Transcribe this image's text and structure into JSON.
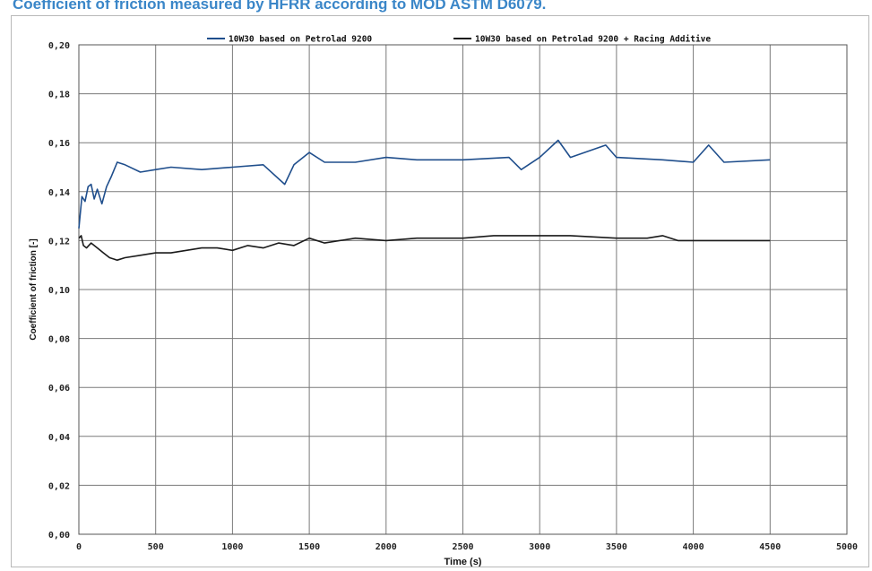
{
  "page_title": "Coefficient of friction measured by HFRR according to MOD ASTM D6079.",
  "chart_data": {
    "type": "line",
    "title": "",
    "xlabel": "Time (s)",
    "ylabel": "Coefficient of friction [-]",
    "xlim": [
      0,
      5000
    ],
    "ylim": [
      0,
      0.2
    ],
    "x_ticks": [
      0,
      500,
      1000,
      1500,
      2000,
      2500,
      3000,
      3500,
      4000,
      4500,
      5000
    ],
    "x_tick_labels": [
      "0",
      "500",
      "1000",
      "1500",
      "2000",
      "2500",
      "3000",
      "3500",
      "4000",
      "4500",
      "5000"
    ],
    "y_ticks": [
      0,
      0.02,
      0.04,
      0.06,
      0.08,
      0.1,
      0.12,
      0.14,
      0.16,
      0.18,
      0.2
    ],
    "y_tick_labels": [
      "0,00",
      "0,02",
      "0,04",
      "0,06",
      "0,08",
      "0,10",
      "0,12",
      "0,14",
      "0,16",
      "0,18",
      "0,20"
    ],
    "grid": true,
    "legend_position": "top-center",
    "series": [
      {
        "name": "10W30 based on Petrolad 9200",
        "color": "#1f4e8c",
        "x": [
          0,
          20,
          40,
          60,
          80,
          100,
          120,
          150,
          180,
          210,
          250,
          300,
          400,
          500,
          600,
          800,
          1000,
          1200,
          1340,
          1400,
          1500,
          1600,
          1800,
          2000,
          2200,
          2500,
          2800,
          2880,
          3000,
          3120,
          3200,
          3430,
          3500,
          3800,
          4000,
          4100,
          4200,
          4500
        ],
        "y": [
          0.125,
          0.138,
          0.136,
          0.142,
          0.143,
          0.137,
          0.141,
          0.135,
          0.142,
          0.146,
          0.152,
          0.151,
          0.148,
          0.149,
          0.15,
          0.149,
          0.15,
          0.151,
          0.143,
          0.151,
          0.156,
          0.152,
          0.152,
          0.154,
          0.153,
          0.153,
          0.154,
          0.149,
          0.154,
          0.161,
          0.154,
          0.159,
          0.154,
          0.153,
          0.152,
          0.159,
          0.152,
          0.153
        ]
      },
      {
        "name": "10W30 based on Petrolad 9200 + Racing Additive",
        "color": "#1a1a1a",
        "x": [
          0,
          15,
          30,
          50,
          80,
          120,
          160,
          200,
          250,
          300,
          400,
          500,
          600,
          700,
          800,
          900,
          1000,
          1100,
          1200,
          1300,
          1400,
          1500,
          1600,
          1800,
          2000,
          2200,
          2500,
          2700,
          3000,
          3200,
          3500,
          3700,
          3800,
          3900,
          4000,
          4200,
          4500
        ],
        "y": [
          0.121,
          0.122,
          0.118,
          0.117,
          0.119,
          0.117,
          0.115,
          0.113,
          0.112,
          0.113,
          0.114,
          0.115,
          0.115,
          0.116,
          0.117,
          0.117,
          0.116,
          0.118,
          0.117,
          0.119,
          0.118,
          0.121,
          0.119,
          0.121,
          0.12,
          0.121,
          0.121,
          0.122,
          0.122,
          0.122,
          0.121,
          0.121,
          0.122,
          0.12,
          0.12,
          0.12,
          0.12
        ]
      }
    ]
  }
}
